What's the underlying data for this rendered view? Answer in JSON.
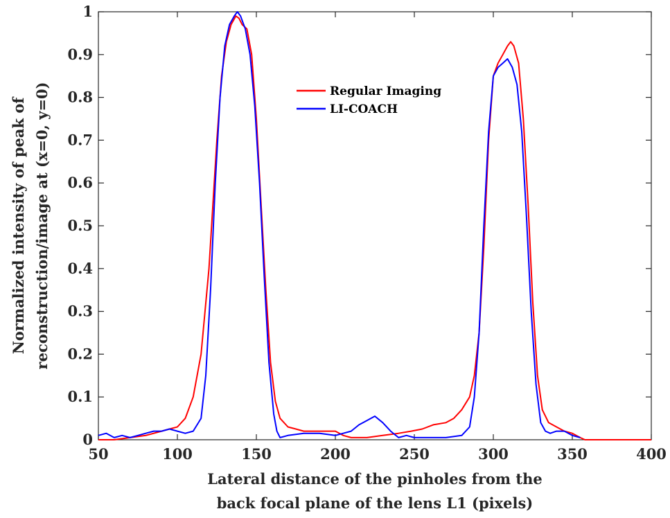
{
  "chart_data": {
    "type": "line",
    "title": "",
    "xlabel_lines": [
      "Lateral distance of the pinholes from the",
      "back focal plane of the lens L1 (pixels)"
    ],
    "ylabel_lines": [
      "Normalized intensity of peak of",
      "reconstruction/image at (x=0, y=0)"
    ],
    "xlim": [
      50,
      400
    ],
    "ylim": [
      0,
      1
    ],
    "xticks": [
      50,
      100,
      150,
      200,
      250,
      300,
      350,
      400
    ],
    "yticks": [
      0,
      0.1,
      0.2,
      0.3,
      0.4,
      0.5,
      0.6,
      0.7,
      0.8,
      0.9,
      1
    ],
    "xtick_labels": [
      "50",
      "100",
      "150",
      "200",
      "250",
      "300",
      "350",
      "400"
    ],
    "ytick_labels": [
      "0",
      "0.1",
      "0.2",
      "0.3",
      "0.4",
      "0.5",
      "0.6",
      "0.7",
      "0.8",
      "0.9",
      "1"
    ],
    "grid": false,
    "legend_position": "upper-center",
    "series": [
      {
        "name": "Regular Imaging",
        "color": "#ff0000",
        "x": [
          50,
          60,
          70,
          80,
          90,
          95,
          100,
          105,
          110,
          115,
          120,
          125,
          128,
          131,
          134,
          137,
          139,
          141,
          144,
          147,
          150,
          153,
          156,
          159,
          162,
          165,
          170,
          175,
          180,
          190,
          200,
          205,
          210,
          220,
          230,
          240,
          248,
          255,
          262,
          270,
          275,
          280,
          285,
          288,
          291,
          294,
          297,
          300,
          303,
          306,
          309,
          311,
          313,
          316,
          319,
          322,
          325,
          328,
          331,
          335,
          340,
          345,
          350,
          355,
          358,
          370,
          400
        ],
        "y": [
          0,
          0,
          0.005,
          0.01,
          0.02,
          0.025,
          0.03,
          0.05,
          0.1,
          0.2,
          0.4,
          0.7,
          0.85,
          0.93,
          0.97,
          0.99,
          0.985,
          0.97,
          0.96,
          0.9,
          0.75,
          0.55,
          0.35,
          0.18,
          0.09,
          0.05,
          0.03,
          0.025,
          0.02,
          0.02,
          0.02,
          0.01,
          0.005,
          0.005,
          0.01,
          0.015,
          0.02,
          0.025,
          0.035,
          0.04,
          0.05,
          0.07,
          0.1,
          0.15,
          0.25,
          0.45,
          0.7,
          0.85,
          0.88,
          0.9,
          0.92,
          0.93,
          0.92,
          0.88,
          0.75,
          0.55,
          0.32,
          0.15,
          0.07,
          0.04,
          0.03,
          0.02,
          0.015,
          0.005,
          0,
          0,
          0
        ]
      },
      {
        "name": "LI-COACH",
        "color": "#0000ff",
        "x": [
          50,
          55,
          60,
          65,
          70,
          75,
          80,
          85,
          90,
          95,
          100,
          105,
          110,
          115,
          118,
          121,
          124,
          127,
          130,
          133,
          136,
          138,
          140,
          143,
          146,
          149,
          152,
          155,
          158,
          161,
          163,
          165,
          170,
          180,
          190,
          200,
          205,
          210,
          215,
          220,
          225,
          230,
          235,
          240,
          245,
          250,
          260,
          270,
          280,
          285,
          288,
          291,
          294,
          297,
          300,
          303,
          306,
          309,
          312,
          315,
          318,
          321,
          324,
          327,
          330,
          333,
          336,
          340,
          345,
          350,
          355
        ],
        "y": [
          0.01,
          0.015,
          0.005,
          0.01,
          0.005,
          0.01,
          0.015,
          0.02,
          0.02,
          0.025,
          0.02,
          0.015,
          0.02,
          0.05,
          0.15,
          0.35,
          0.6,
          0.8,
          0.92,
          0.97,
          0.99,
          1.0,
          0.99,
          0.96,
          0.9,
          0.78,
          0.6,
          0.38,
          0.18,
          0.06,
          0.02,
          0.005,
          0.01,
          0.015,
          0.015,
          0.01,
          0.015,
          0.02,
          0.035,
          0.045,
          0.055,
          0.04,
          0.02,
          0.005,
          0.01,
          0.005,
          0.005,
          0.005,
          0.01,
          0.03,
          0.1,
          0.25,
          0.5,
          0.72,
          0.85,
          0.87,
          0.88,
          0.89,
          0.87,
          0.83,
          0.72,
          0.52,
          0.3,
          0.13,
          0.04,
          0.02,
          0.015,
          0.02,
          0.02,
          0.01,
          0.005
        ]
      }
    ]
  }
}
